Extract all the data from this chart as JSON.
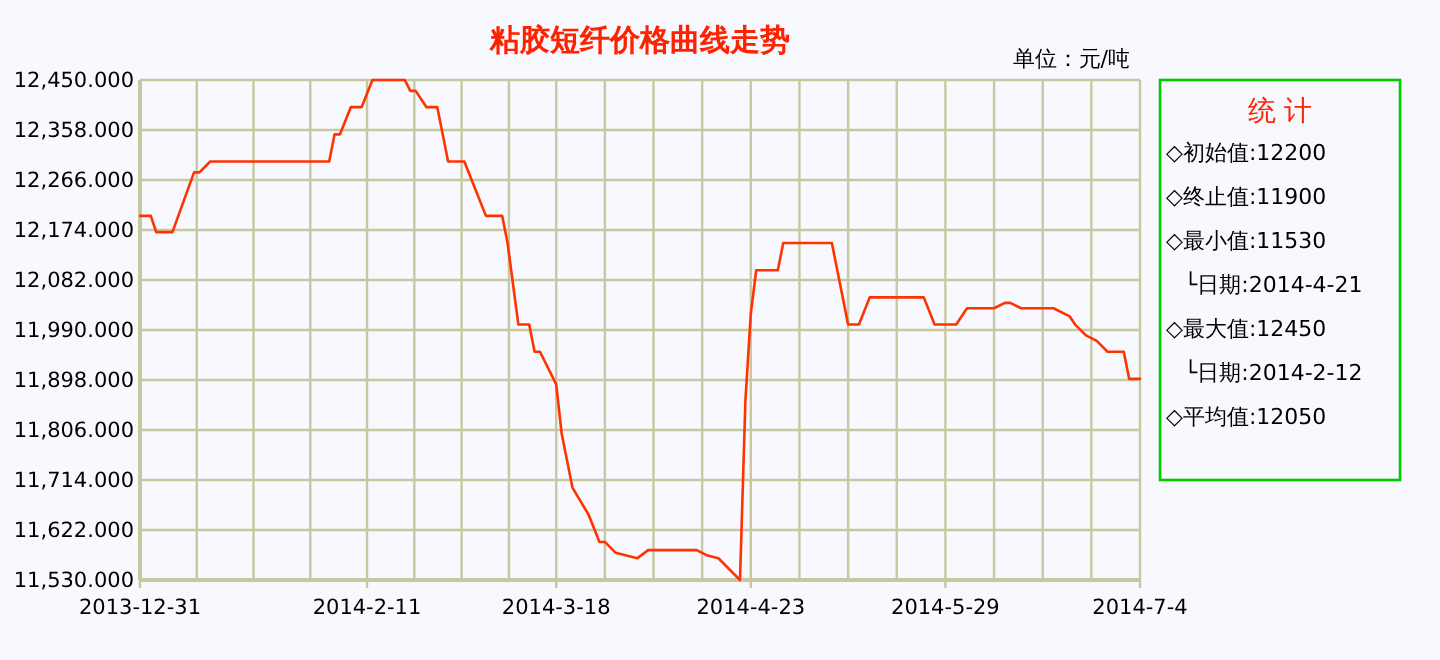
{
  "chart_data": [
    {
      "type": "line",
      "title": "粘胶短纤价格曲线走势",
      "ylabel": "单位：元/吨",
      "x": [
        "2013-12-31",
        "2014-01-02",
        "2014-01-03",
        "2014-01-06",
        "2014-01-10",
        "2014-01-11",
        "2014-01-13",
        "2014-02-04",
        "2014-02-05",
        "2014-02-06",
        "2014-02-08",
        "2014-02-10",
        "2014-02-12",
        "2014-02-18",
        "2014-02-19",
        "2014-02-20",
        "2014-02-22",
        "2014-02-24",
        "2014-02-26",
        "2014-03-01",
        "2014-03-03",
        "2014-03-05",
        "2014-03-08",
        "2014-03-09",
        "2014-03-11",
        "2014-03-13",
        "2014-03-14",
        "2014-03-15",
        "2014-03-18",
        "2014-03-19",
        "2014-03-21",
        "2014-03-24",
        "2014-03-26",
        "2014-03-27",
        "2014-03-29",
        "2014-03-31",
        "2014-04-02",
        "2014-04-04",
        "2014-04-13",
        "2014-04-15",
        "2014-04-17",
        "2014-04-21",
        "2014-04-22",
        "2014-04-23",
        "2014-04-24",
        "2014-04-28",
        "2014-04-29",
        "2014-05-08",
        "2014-05-09",
        "2014-05-11",
        "2014-05-13",
        "2014-05-15",
        "2014-05-25",
        "2014-05-27",
        "2014-05-31",
        "2014-06-02",
        "2014-06-07",
        "2014-06-09",
        "2014-06-10",
        "2014-06-12",
        "2014-06-18",
        "2014-06-21",
        "2014-06-22",
        "2014-06-24",
        "2014-06-26",
        "2014-06-28",
        "2014-07-01",
        "2014-07-02",
        "2014-07-04"
      ],
      "series": [
        {
          "color": "#ff3300",
          "values": [
            12200,
            12200,
            12170,
            12170,
            12280,
            12280,
            12300,
            12300,
            12350,
            12350,
            12400,
            12400,
            12450,
            12450,
            12430,
            12430,
            12400,
            12400,
            12300,
            12300,
            12250,
            12200,
            12200,
            12150,
            12000,
            12000,
            11950,
            11950,
            11890,
            11800,
            11700,
            11650,
            11600,
            11600,
            11580,
            11575,
            11570,
            11585,
            11585,
            11575,
            11570,
            11530,
            11860,
            12020,
            12100,
            12100,
            12150,
            12150,
            12100,
            12000,
            12000,
            12050,
            12050,
            12000,
            12000,
            12030,
            12030,
            12040,
            12040,
            12030,
            12030,
            12015,
            12000,
            11980,
            11970,
            11950,
            11950,
            11900,
            11900
          ]
        }
      ],
      "xlim": [
        "2013-12-31",
        "2014-07-04"
      ],
      "xticks": [
        {
          "value": "2013-12-31",
          "label": "2013-12-31"
        },
        {
          "value": "2014-02-11",
          "label": "2014-2-11"
        },
        {
          "value": "2014-03-18",
          "label": "2014-3-18"
        },
        {
          "value": "2014-04-23",
          "label": "2014-4-23"
        },
        {
          "value": "2014-05-29",
          "label": "2014-5-29"
        },
        {
          "value": "2014-07-04",
          "label": "2014-7-4"
        }
      ],
      "ylim": [
        11530,
        12450
      ],
      "yticks": [
        {
          "value": 11530,
          "label": "11,530.000"
        },
        {
          "value": 11622,
          "label": "11,622.000"
        },
        {
          "value": 11714,
          "label": "11,714.000"
        },
        {
          "value": 11806,
          "label": "11,806.000"
        },
        {
          "value": 11898,
          "label": "11,898.000"
        },
        {
          "value": 11990,
          "label": "11,990.000"
        },
        {
          "value": 12082,
          "label": "12,082.000"
        },
        {
          "value": 12174,
          "label": "12,174.000"
        },
        {
          "value": 12266,
          "label": "12,266.000"
        },
        {
          "value": 12358,
          "label": "12,358.000"
        },
        {
          "value": 12450,
          "label": "12,450.000"
        }
      ],
      "grid": true,
      "marker": "none",
      "line_style": "solid"
    },
    {
      "type": "other",
      "title": "统 计",
      "annotations": [
        "◇初始值:12200",
        "◇终止值:11900",
        "◇最小值:11530",
        "└日期:2014-4-21",
        "◇最大值:12450",
        "└日期:2014-2-12",
        "◇平均值:12050"
      ]
    }
  ]
}
